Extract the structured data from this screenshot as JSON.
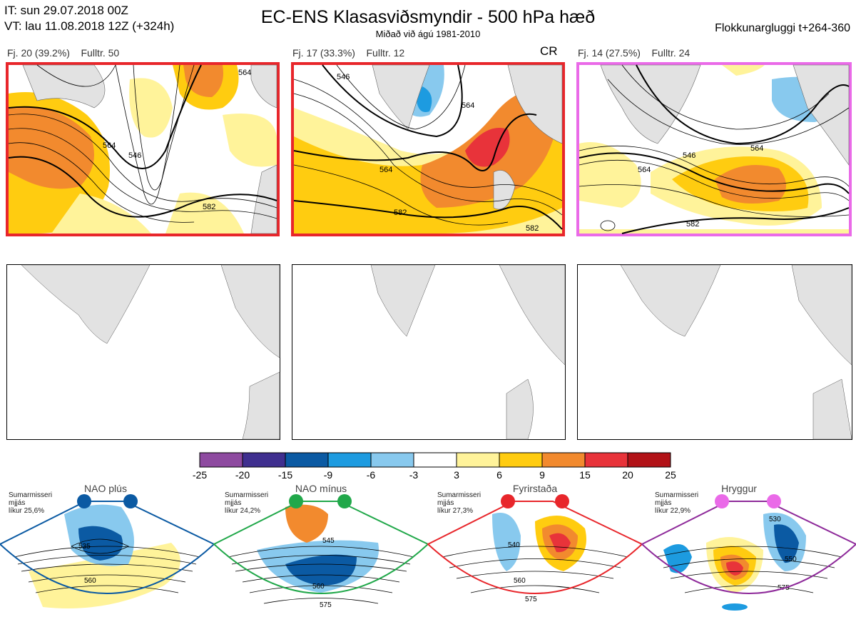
{
  "header": {
    "issue_time": "IT: sun 29.07.2018 00Z",
    "valid_time": "VT: lau 11.08.2018 12Z  (+324h)",
    "title": "EC-ENS Klasasviðsmyndir - 500 hPa hæð",
    "subtitle": "Miðað við ágú 1981-2010",
    "window": "Flokkunargluggi t+264-360"
  },
  "clusters": [
    {
      "label": "Fj. 20 (39.2%)",
      "rep": "Fulltr. 50",
      "border_color": "#e8262b",
      "contours": [
        "564",
        "546",
        "582",
        "564"
      ]
    },
    {
      "label": "Fj. 17 (33.3%)",
      "rep": "Fulltr. 12",
      "border_color": "#e8262b",
      "marker": "CR",
      "contours": [
        "546",
        "564",
        "582",
        "582",
        "564"
      ]
    },
    {
      "label": "Fj. 14 (27.5%)",
      "rep": "Fulltr. 24",
      "border_color": "#ea6ae8",
      "contours": [
        "546",
        "564",
        "582",
        "564"
      ]
    }
  ],
  "colorbar": {
    "ticks": [
      "-25",
      "-20",
      "-15",
      "-9",
      "-6",
      "-3",
      "3",
      "6",
      "9",
      "15",
      "20",
      "25"
    ],
    "colors": [
      "#8e4aa0",
      "#3f2f8f",
      "#0b5aa3",
      "#1d9be0",
      "#88c9ee",
      "#ffffff",
      "#fff39a",
      "#ffcc10",
      "#f28a2e",
      "#e8333a",
      "#b21217"
    ]
  },
  "regimes": [
    {
      "name": "NAO plús",
      "lines": [
        "Sumarmisseri",
        "mjjás",
        "líkur 25,6%"
      ],
      "color": "#0b5aa3",
      "labels": [
        "535",
        "560"
      ]
    },
    {
      "name": "NAO mínus",
      "lines": [
        "Sumarmisseri",
        "mjjás",
        "líkur 24,2%"
      ],
      "color": "#21a84a",
      "labels": [
        "545",
        "560",
        "575"
      ]
    },
    {
      "name": "Fyrirstaða",
      "lines": [
        "Sumarmisseri",
        "mjjás",
        "líkur 27,3%"
      ],
      "color": "#e8262b",
      "labels": [
        "540",
        "560",
        "575"
      ]
    },
    {
      "name": "Hryggur",
      "lines": [
        "Sumarmisseri",
        "mjjás",
        "líkur 22,9%"
      ],
      "color": "#ea6ae8",
      "labels": [
        "530",
        "550",
        "575"
      ]
    }
  ]
}
